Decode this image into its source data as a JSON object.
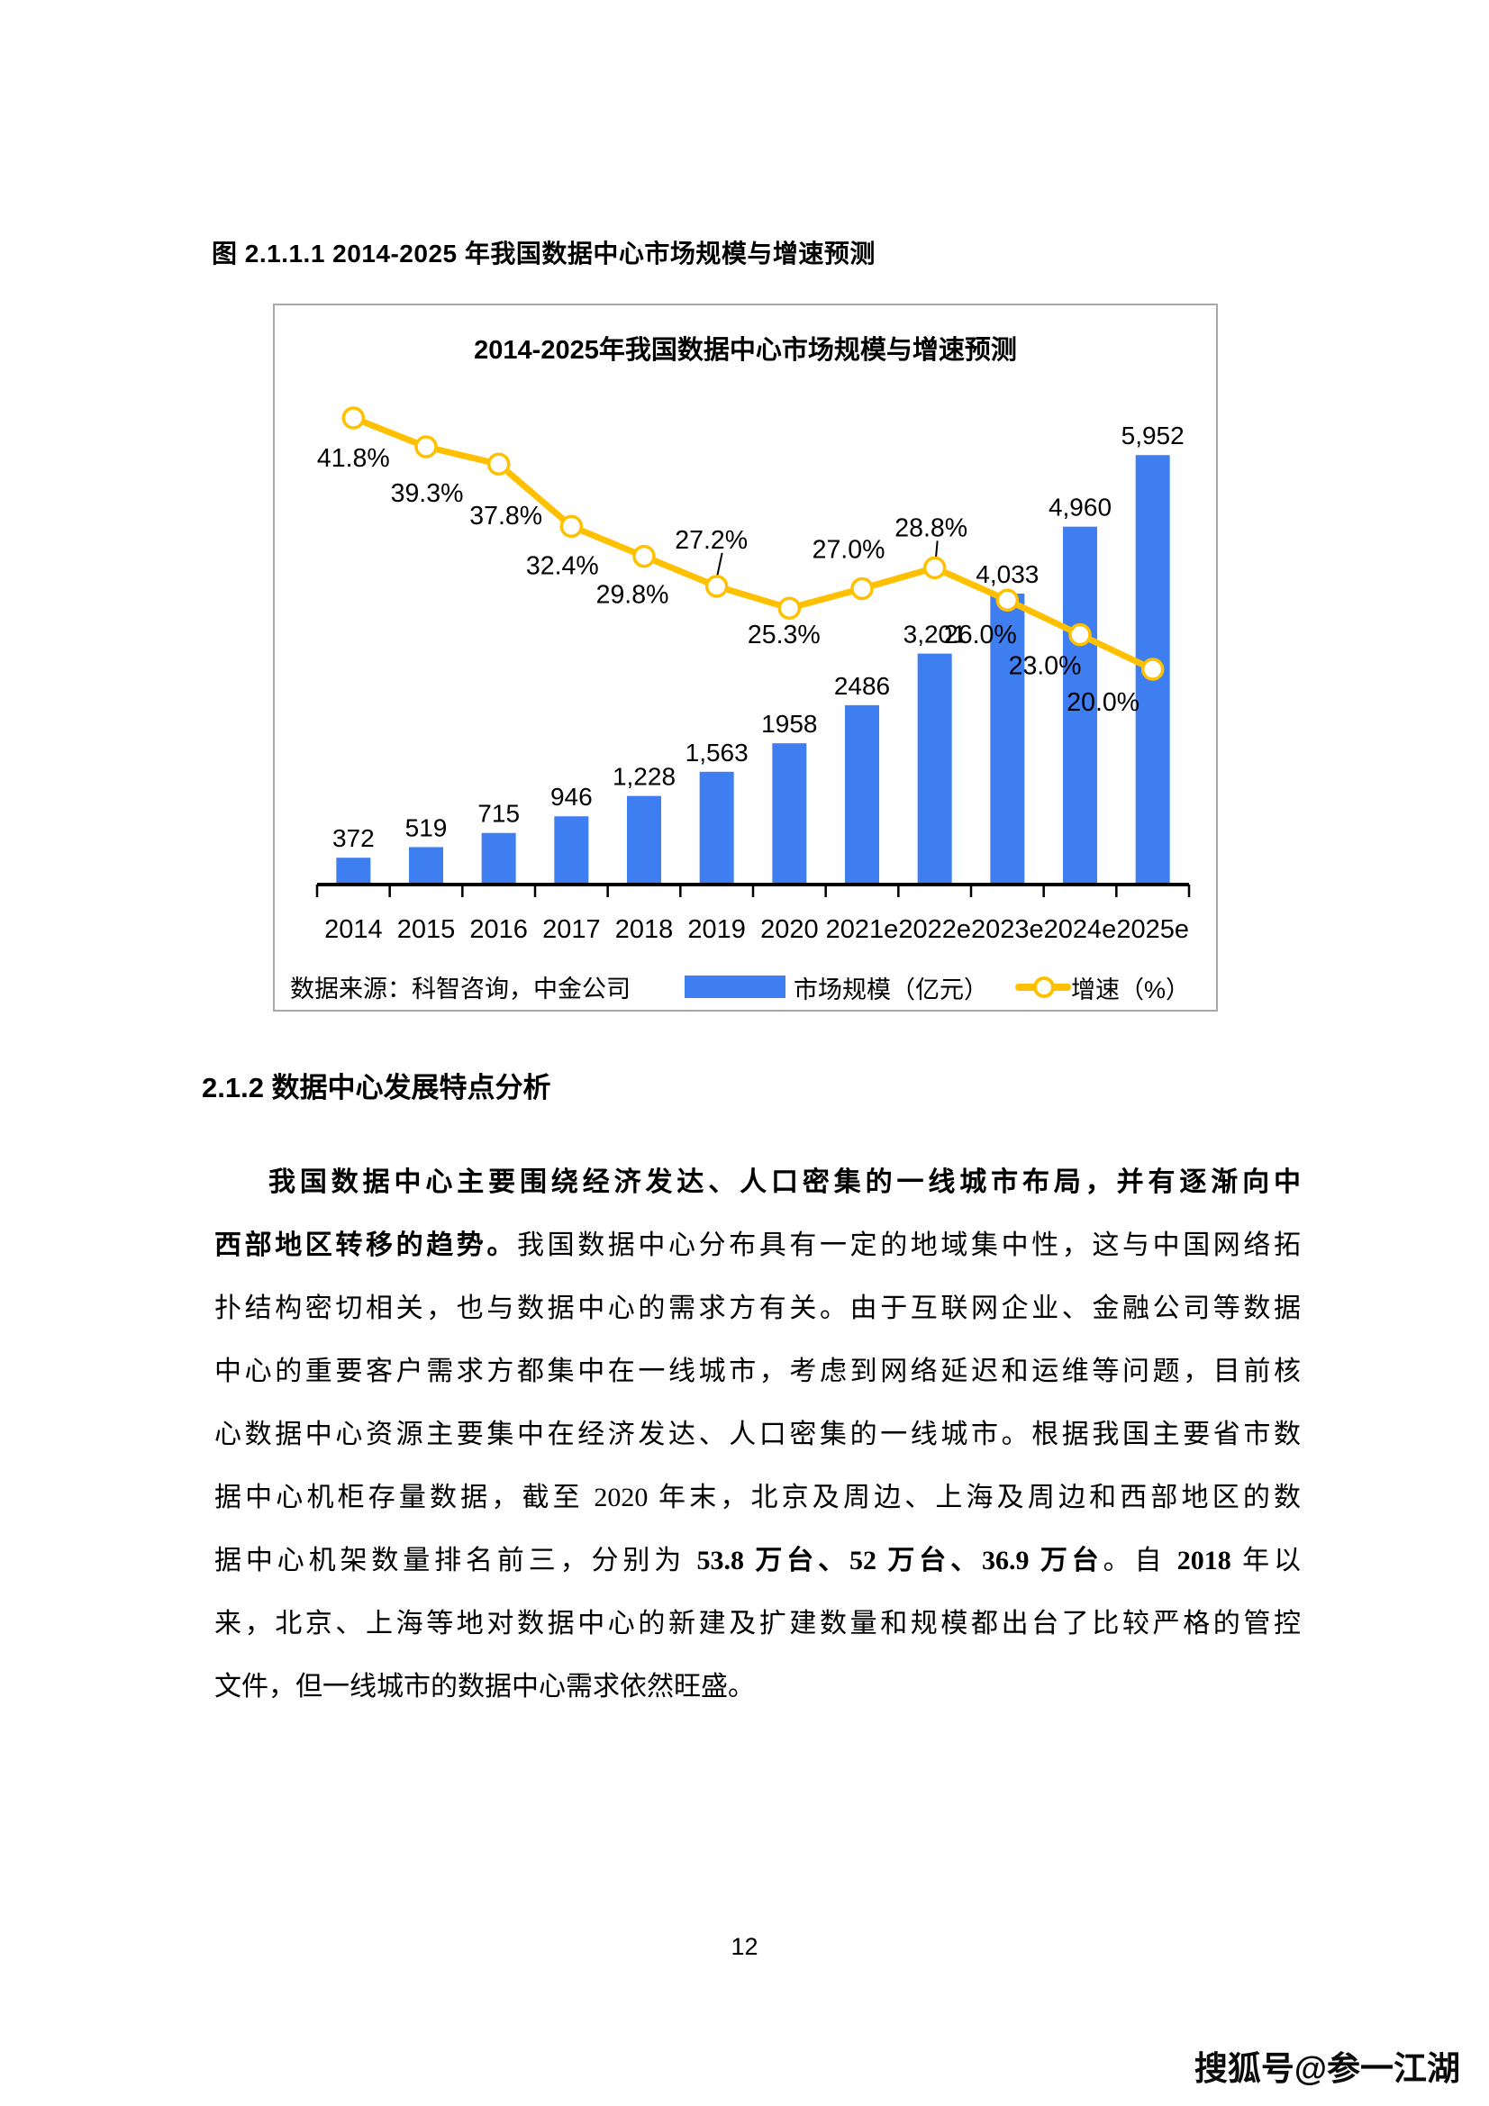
{
  "page": {
    "figure_caption": "图 2.1.1.1 2014-2025 年我国数据中心市场规模与增速预测",
    "section_heading": "2.1.2 数据中心发展特点分析",
    "page_number": "12",
    "watermark": "搜狐号@参一江湖"
  },
  "paragraph": {
    "lines": [
      {
        "indent": true,
        "runs": [
          {
            "text": "我国数据中心主要围绕经济发达、人口密集的一线城市布局，并有逐渐向中",
            "bold": true
          }
        ]
      },
      {
        "runs": [
          {
            "text": "西部地区转移的趋势。",
            "bold": true
          },
          {
            "text": "我国数据中心分布具有一定的地域集中性，这与中国网络拓",
            "bold": false
          }
        ]
      },
      {
        "runs": [
          {
            "text": "扑结构密切相关，也与数据中心的需求方有关。由于互联网企业、金融公司等数据",
            "bold": false
          }
        ]
      },
      {
        "runs": [
          {
            "text": "中心的重要客户需求方都集中在一线城市，考虑到网络延迟和运维等问题，目前核",
            "bold": false
          }
        ]
      },
      {
        "runs": [
          {
            "text": "心数据中心资源主要集中在经济发达、人口密集的一线城市。根据我国主要省市数",
            "bold": false
          }
        ]
      },
      {
        "runs": [
          {
            "text": "据中心机柜存量数据，截至 2020 年末，北京及周边、上海及周边和西部地区的数",
            "bold": false
          }
        ]
      },
      {
        "runs": [
          {
            "text": "据中心机架数量排名前三，分别为 ",
            "bold": false
          },
          {
            "text": "53.8 万台、52 万台、36.9 万台",
            "bold": true
          },
          {
            "text": "。自 ",
            "bold": false
          },
          {
            "text": "2018",
            "bold": true
          },
          {
            "text": " 年以",
            "bold": false
          }
        ]
      },
      {
        "runs": [
          {
            "text": "来，北京、上海等地对数据中心的新建及扩建数量和规模都出台了比较严格的管控",
            "bold": false
          }
        ]
      },
      {
        "last": true,
        "runs": [
          {
            "text": "文件，但一线城市的数据中心需求依然旺盛。",
            "bold": false
          }
        ]
      }
    ]
  },
  "chart_data": {
    "type": "bar",
    "combo": "bar+line",
    "title": "2014-2025年我国数据中心市场规模与增速预测",
    "source": "数据来源：科智咨询，中金公司",
    "categories": [
      "2014",
      "2015",
      "2016",
      "2017",
      "2018",
      "2019",
      "2020",
      "2021e",
      "2022e",
      "2023e",
      "2024e",
      "2025e"
    ],
    "series": [
      {
        "name": "市场规模（亿元）",
        "type": "bar",
        "color": "#3e7ef0",
        "values": [
          372,
          519,
          715,
          946,
          1228,
          1563,
          1958,
          2486,
          3201,
          4033,
          4960,
          5952
        ],
        "labels": [
          "372",
          "519",
          "715",
          "946",
          "1,228",
          "1,563",
          "1958",
          "2486",
          "3,201",
          "4,033",
          "4,960",
          "5,952"
        ]
      },
      {
        "name": "增速（%）",
        "type": "line",
        "color": "#ffc000",
        "values": [
          41.8,
          39.3,
          37.8,
          32.4,
          29.8,
          27.2,
          25.3,
          27.0,
          28.8,
          26.0,
          23.0,
          20.0
        ],
        "labels": [
          "41.8%",
          "39.3%",
          "37.8%",
          "32.4%",
          "29.8%",
          "27.2%",
          "25.3%",
          "27.0%",
          "28.8%",
          "26.0%",
          "23.0%",
          "20.0%"
        ]
      }
    ],
    "ylim_bars": [
      0,
      6200
    ],
    "ylim_growth_pct": [
      18,
      45
    ],
    "grid": false,
    "legend_position": "bottom"
  }
}
